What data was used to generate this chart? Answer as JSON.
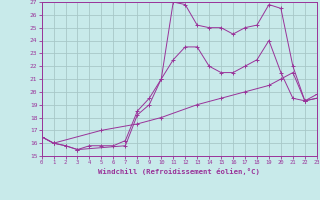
{
  "background_color": "#c8eaea",
  "grid_color": "#a8c8c8",
  "line_color": "#993399",
  "xlabel": "Windchill (Refroidissement éolien,°C)",
  "ylim": [
    15,
    27
  ],
  "xlim": [
    0,
    23
  ],
  "yticks": [
    15,
    16,
    17,
    18,
    19,
    20,
    21,
    22,
    23,
    24,
    25,
    26,
    27
  ],
  "xticks": [
    0,
    1,
    2,
    3,
    4,
    5,
    6,
    7,
    8,
    9,
    10,
    11,
    12,
    13,
    14,
    15,
    16,
    17,
    18,
    19,
    20,
    21,
    22,
    23
  ],
  "line1_x": [
    0,
    1,
    2,
    3,
    4,
    5,
    6,
    7,
    8,
    9,
    10,
    11,
    12,
    13,
    14,
    15,
    16,
    17,
    18,
    19,
    20,
    21,
    22,
    23
  ],
  "line1_y": [
    16.5,
    16.0,
    15.8,
    15.5,
    15.8,
    15.8,
    15.8,
    16.2,
    18.5,
    19.5,
    21.0,
    22.5,
    23.5,
    23.5,
    22.0,
    21.5,
    21.5,
    22.0,
    22.5,
    24.0,
    21.5,
    19.5,
    19.3,
    19.5
  ],
  "line2_x": [
    0,
    1,
    2,
    3,
    7,
    8,
    9,
    10,
    11,
    12,
    13,
    14,
    15,
    16,
    17,
    18,
    19,
    20,
    21,
    22,
    23
  ],
  "line2_y": [
    16.5,
    16.0,
    15.8,
    15.5,
    15.8,
    18.2,
    19.0,
    21.0,
    27.0,
    26.8,
    25.2,
    25.0,
    25.0,
    24.5,
    25.0,
    25.2,
    26.8,
    26.5,
    22.0,
    19.3,
    19.8
  ],
  "line3_x": [
    0,
    1,
    5,
    8,
    10,
    13,
    15,
    17,
    19,
    20,
    21,
    22,
    23
  ],
  "line3_y": [
    16.5,
    16.0,
    17.0,
    17.5,
    18.0,
    19.0,
    19.5,
    20.0,
    20.5,
    21.0,
    21.5,
    19.3,
    19.5
  ]
}
